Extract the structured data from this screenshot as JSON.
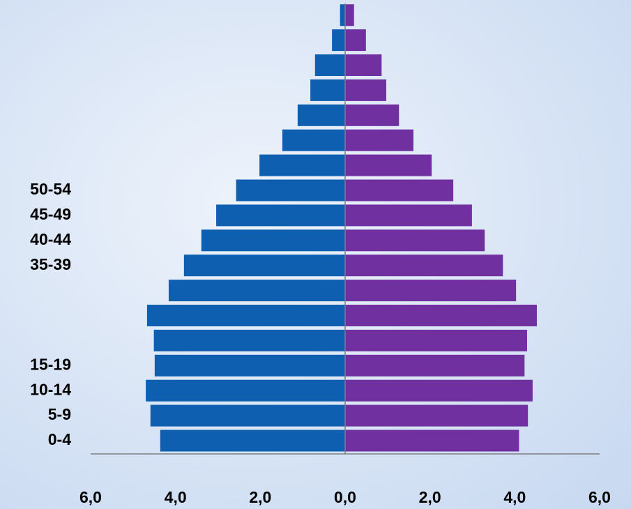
{
  "chart_data": {
    "type": "pyramid",
    "categories": [
      "0-4",
      "5-9",
      "10-14",
      "15-19",
      null,
      null,
      null,
      "35-39",
      "40-44",
      "45-49",
      "50-54",
      null,
      null,
      null,
      null,
      null,
      null,
      null
    ],
    "series": [
      {
        "color": "#0f5fb0",
        "side": "left",
        "values": [
          4.36,
          4.59,
          4.7,
          4.49,
          4.51,
          4.67,
          4.16,
          3.8,
          3.39,
          3.04,
          2.57,
          2.02,
          1.48,
          1.12,
          0.82,
          0.71,
          0.31,
          0.12
        ]
      },
      {
        "color": "#7030a0",
        "side": "right",
        "values": [
          4.1,
          4.31,
          4.42,
          4.23,
          4.29,
          4.52,
          4.03,
          3.72,
          3.29,
          2.99,
          2.55,
          2.04,
          1.61,
          1.27,
          0.97,
          0.86,
          0.49,
          0.21
        ]
      }
    ],
    "xlim": [
      -6,
      6
    ],
    "xticks": [
      {
        "value": -6,
        "label": "6,0"
      },
      {
        "value": -4,
        "label": "4,0"
      },
      {
        "value": -2,
        "label": "2,0"
      },
      {
        "value": 0,
        "label": "0,0"
      },
      {
        "value": 2,
        "label": "2,0"
      },
      {
        "value": 4,
        "label": "4,0"
      },
      {
        "value": 6,
        "label": "6,0"
      }
    ]
  }
}
